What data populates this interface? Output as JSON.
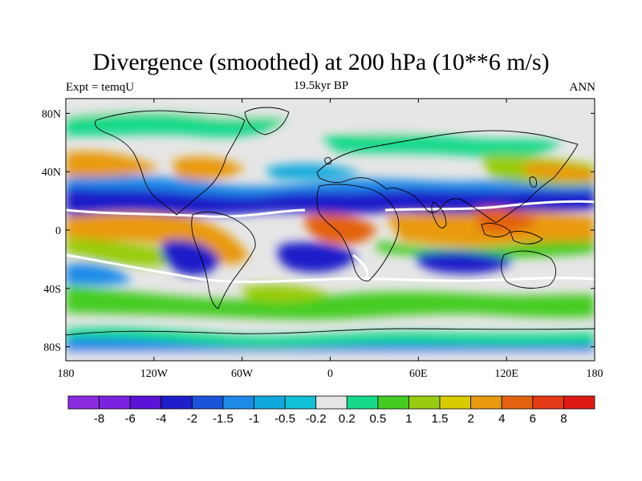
{
  "title": "Divergence (smoothed) at 200 hPa (10**6 m/s)",
  "subtitle_left": "Expt = temqU",
  "subtitle_center": "19.5kyr BP",
  "subtitle_right": "ANN",
  "lat_labels": [
    "80N",
    "40N",
    "0",
    "40S",
    "80S"
  ],
  "lat_values": [
    80,
    40,
    0,
    -40,
    -80
  ],
  "lon_labels": [
    "180",
    "120W",
    "60W",
    "0",
    "60E",
    "120E",
    "180"
  ],
  "lon_values": [
    -180,
    -120,
    -60,
    0,
    60,
    120,
    180
  ],
  "colorbar": {
    "labels": [
      "-8",
      "-6",
      "-4",
      "-2",
      "-1.5",
      "-1",
      "-0.5",
      "-0.2",
      "0.2",
      "0.5",
      "1",
      "1.5",
      "2",
      "4",
      "6",
      "8"
    ],
    "colors": [
      "#8a2be2",
      "#7a22e0",
      "#5b14d6",
      "#1f1fc9",
      "#1a55d9",
      "#1f8be8",
      "#11a8dc",
      "#12c0d6",
      "#e6e6e6",
      "#16d98a",
      "#44cc22",
      "#99cc11",
      "#d8cc00",
      "#e99a10",
      "#e36210",
      "#e43a16",
      "#df1a16"
    ]
  },
  "map_colors": {
    "ocean_bg": "#e6e6e6",
    "coast": "#000000"
  }
}
